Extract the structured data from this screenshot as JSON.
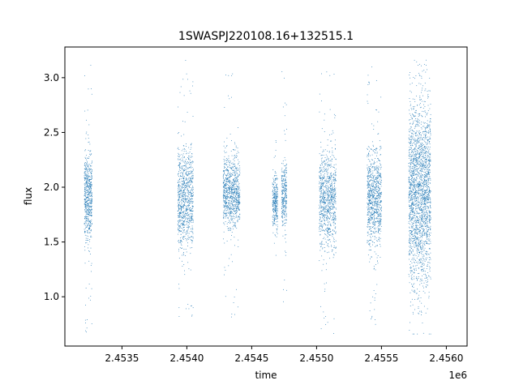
{
  "chart_data": {
    "type": "scatter",
    "title": "1SWASPJ220108.16+132515.1",
    "xlabel": "time",
    "ylabel": "flux",
    "x_offset_label": "1e6",
    "x_tick_values": [
      2.4535,
      2.454,
      2.4545,
      2.455,
      2.4555,
      2.456
    ],
    "x_tick_labels": [
      "2.4535",
      "2.4540",
      "2.4545",
      "2.4550",
      "2.4555",
      "2.4560"
    ],
    "y_tick_values": [
      1.0,
      1.5,
      2.0,
      2.5,
      3.0
    ],
    "y_tick_labels": [
      "1.0",
      "1.5",
      "2.0",
      "2.5",
      "3.0"
    ],
    "xlim": [
      2.45306,
      2.45616
    ],
    "ylim": [
      0.55,
      3.28
    ],
    "grid": false,
    "marker_color": "#1f77b4",
    "observing_seasons": [
      {
        "x_range": [
          2.45321,
          2.45327
        ],
        "flux_center": 1.92,
        "flux_spread": 0.2,
        "flux_min": 0.67,
        "flux_max": 3.14,
        "n_points": 600
      },
      {
        "x_range": [
          2.45393,
          2.45405
        ],
        "flux_center": 1.88,
        "flux_spread": 0.23,
        "flux_min": 0.66,
        "flux_max": 3.16,
        "n_points": 900
      },
      {
        "x_range": [
          2.45428,
          2.45441
        ],
        "flux_center": 1.95,
        "flux_spread": 0.16,
        "flux_min": 0.81,
        "flux_max": 3.05,
        "n_points": 900
      },
      {
        "x_range": [
          2.45466,
          2.4547
        ],
        "flux_center": 1.86,
        "flux_spread": 0.12,
        "flux_min": 1.3,
        "flux_max": 2.48,
        "n_points": 300
      },
      {
        "x_range": [
          2.45473,
          2.45477
        ],
        "flux_center": 1.92,
        "flux_spread": 0.15,
        "flux_min": 0.72,
        "flux_max": 3.1,
        "n_points": 300
      },
      {
        "x_range": [
          2.45502,
          2.45515
        ],
        "flux_center": 1.87,
        "flux_spread": 0.22,
        "flux_min": 0.66,
        "flux_max": 3.12,
        "n_points": 900
      },
      {
        "x_range": [
          2.45539,
          2.4555
        ],
        "flux_center": 1.9,
        "flux_spread": 0.22,
        "flux_min": 0.67,
        "flux_max": 3.13,
        "n_points": 900
      },
      {
        "x_range": [
          2.45571,
          2.45588
        ],
        "flux_center": 1.95,
        "flux_spread": 0.4,
        "flux_min": 0.66,
        "flux_max": 3.16,
        "n_points": 2200
      }
    ]
  }
}
